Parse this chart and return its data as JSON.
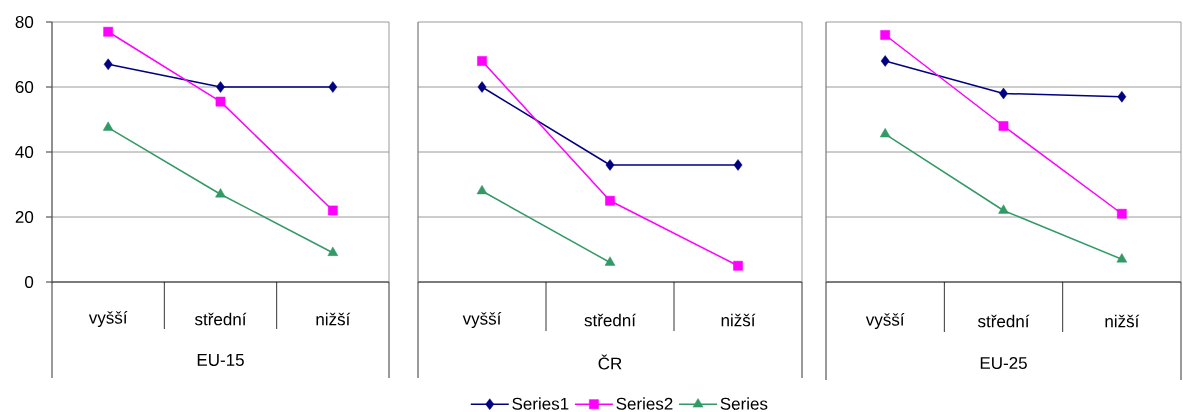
{
  "chart_data": [
    {
      "type": "line",
      "categories": [
        "vyšší",
        "střední",
        "nižší"
      ],
      "xlabel": "EU-15",
      "ylim": [
        0,
        80
      ],
      "yticks": [
        0,
        20,
        40,
        60,
        80
      ],
      "grid": "y",
      "series": [
        {
          "color": "#000080",
          "marker": "diamond",
          "values": [
            67,
            60,
            60
          ]
        },
        {
          "color": "#ff00ff",
          "marker": "square",
          "values": [
            77,
            55.5,
            22
          ]
        },
        {
          "color": "#339966",
          "marker": "triangle",
          "values": [
            47.5,
            27,
            9
          ]
        }
      ]
    },
    {
      "type": "line",
      "categories": [
        "vyšší",
        "střední",
        "nižší"
      ],
      "xlabel": "ČR",
      "ylim": [
        0,
        80
      ],
      "yticks": [
        0,
        20,
        40,
        60,
        80
      ],
      "grid": "y",
      "tick_labels": "x",
      "legend": "bottom",
      "series": [
        {
          "name": "Series1",
          "color": "#000080",
          "marker": "diamond",
          "values": [
            60,
            36,
            36
          ]
        },
        {
          "name": "Series2",
          "color": "#ff00ff",
          "marker": "square",
          "values": [
            68,
            25,
            5
          ]
        },
        {
          "name": "Series",
          "color": "#339966",
          "marker": "triangle",
          "values": [
            28,
            6,
            null
          ]
        }
      ]
    },
    {
      "type": "line",
      "categories": [
        "vyšší",
        "střední",
        "nižší"
      ],
      "xlabel": "EU-25",
      "ylim": [
        0,
        80
      ],
      "yticks": [
        0,
        20,
        40,
        60,
        80
      ],
      "grid": "y",
      "tick_labels": "x",
      "series": [
        {
          "color": "#000080",
          "marker": "diamond",
          "values": [
            68,
            58,
            57
          ]
        },
        {
          "color": "#ff00ff",
          "marker": "square",
          "values": [
            76,
            48,
            21
          ]
        },
        {
          "color": "#339966",
          "marker": "triangle",
          "values": [
            45.5,
            22,
            7
          ]
        }
      ]
    }
  ]
}
